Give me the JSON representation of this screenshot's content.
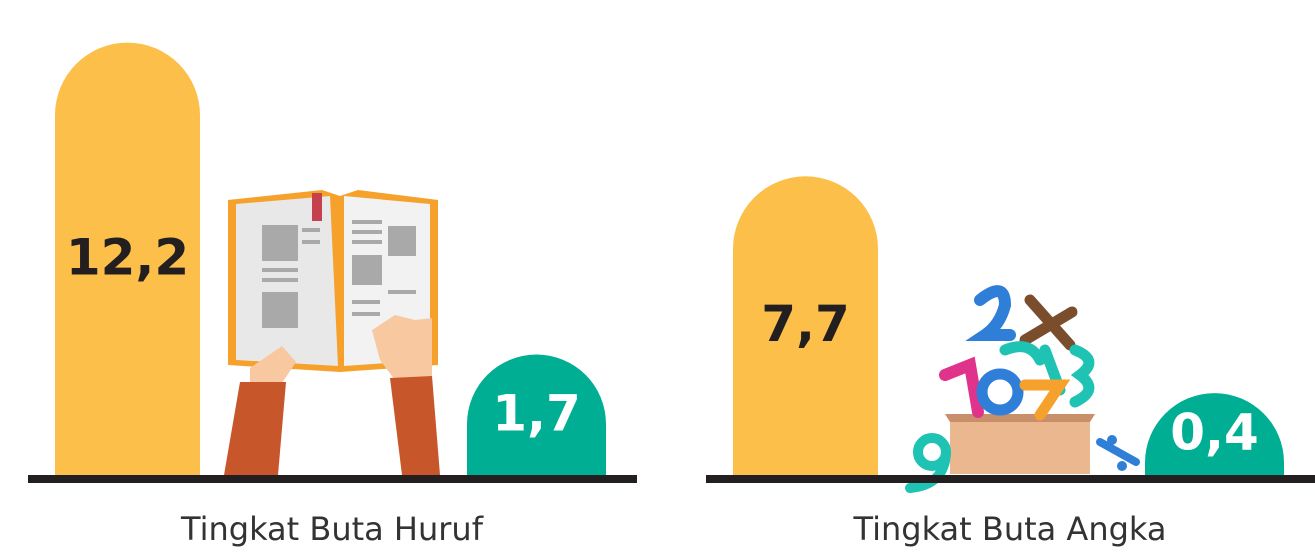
{
  "chart_data": [
    {
      "type": "bar",
      "title": "Tingkat Buta Huruf",
      "values": [
        12.2,
        1.7
      ],
      "value_labels": [
        "12,2",
        "1,7"
      ],
      "colors": [
        "#FCBF49",
        "#00AE93"
      ]
    },
    {
      "type": "bar",
      "title": "Tingkat Buta Angka",
      "values": [
        7.7,
        0.4
      ],
      "value_labels": [
        "7,7",
        "0,4"
      ],
      "colors": [
        "#FCBF49",
        "#00AE93"
      ]
    }
  ]
}
